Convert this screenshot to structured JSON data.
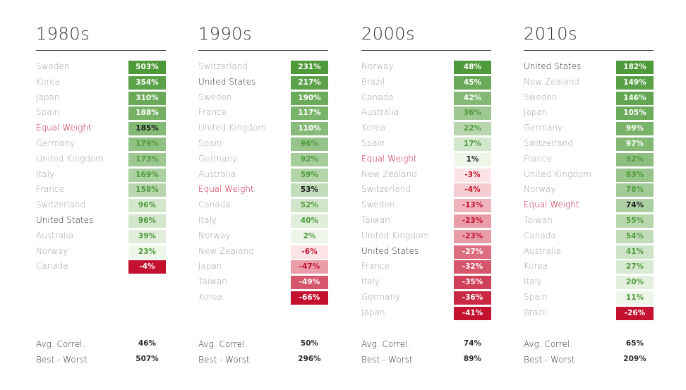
{
  "chart_data": [
    {
      "type": "table",
      "title": "1980s",
      "rows": [
        {
          "country": "Sweden",
          "value": 503,
          "label": "503%"
        },
        {
          "country": "Korea",
          "value": 354,
          "label": "354%"
        },
        {
          "country": "Japan",
          "value": 310,
          "label": "310%"
        },
        {
          "country": "Spain",
          "value": 188,
          "label": "188%"
        },
        {
          "country": "Equal Weight",
          "value": 185,
          "label": "185%"
        },
        {
          "country": "Germany",
          "value": 179,
          "label": "179%"
        },
        {
          "country": "United Kingdom",
          "value": 173,
          "label": "173%"
        },
        {
          "country": "Italy",
          "value": 169,
          "label": "169%"
        },
        {
          "country": "France",
          "value": 158,
          "label": "158%"
        },
        {
          "country": "Switzerland",
          "value": 96,
          "label": "96%"
        },
        {
          "country": "United States",
          "value": 96,
          "label": "96%"
        },
        {
          "country": "Australia",
          "value": 39,
          "label": "39%"
        },
        {
          "country": "Norway",
          "value": 23,
          "label": "23%"
        },
        {
          "country": "Canada",
          "value": -4,
          "label": "-4%"
        }
      ],
      "stats": [
        {
          "label": "Avg. Correl.",
          "value": "46%"
        },
        {
          "label": "Best - Worst",
          "value": "507%"
        }
      ]
    },
    {
      "type": "table",
      "title": "1990s",
      "rows": [
        {
          "country": "Switzerland",
          "value": 231,
          "label": "231%"
        },
        {
          "country": "United States",
          "value": 217,
          "label": "217%"
        },
        {
          "country": "Sweden",
          "value": 190,
          "label": "190%"
        },
        {
          "country": "France",
          "value": 117,
          "label": "117%"
        },
        {
          "country": "United Kingdom",
          "value": 110,
          "label": "110%"
        },
        {
          "country": "Spain",
          "value": 96,
          "label": "96%"
        },
        {
          "country": "Germany",
          "value": 92,
          "label": "92%"
        },
        {
          "country": "Australia",
          "value": 59,
          "label": "59%"
        },
        {
          "country": "Equal Weight",
          "value": 53,
          "label": "53%"
        },
        {
          "country": "Canada",
          "value": 52,
          "label": "52%"
        },
        {
          "country": "Italy",
          "value": 40,
          "label": "40%"
        },
        {
          "country": "Norway",
          "value": 2,
          "label": "2%"
        },
        {
          "country": "New Zealand",
          "value": -6,
          "label": "-6%"
        },
        {
          "country": "Japan",
          "value": -47,
          "label": "-47%"
        },
        {
          "country": "Taiwan",
          "value": -49,
          "label": "-49%"
        },
        {
          "country": "Korea",
          "value": -66,
          "label": "-66%"
        }
      ],
      "stats": [
        {
          "label": "Avg. Correl.",
          "value": "50%"
        },
        {
          "label": "Best - Worst",
          "value": "296%"
        }
      ]
    },
    {
      "type": "table",
      "title": "2000s",
      "rows": [
        {
          "country": "Norway",
          "value": 48,
          "label": "48%"
        },
        {
          "country": "Brazil",
          "value": 45,
          "label": "45%"
        },
        {
          "country": "Canada",
          "value": 42,
          "label": "42%"
        },
        {
          "country": "Australia",
          "value": 36,
          "label": "36%"
        },
        {
          "country": "Korea",
          "value": 22,
          "label": "22%"
        },
        {
          "country": "Spain",
          "value": 17,
          "label": "17%"
        },
        {
          "country": "Equal Weight",
          "value": 1,
          "label": "1%"
        },
        {
          "country": "New Zealand",
          "value": -3,
          "label": "-3%"
        },
        {
          "country": "Switzerland",
          "value": -4,
          "label": "-4%"
        },
        {
          "country": "Sweden",
          "value": -13,
          "label": "-13%"
        },
        {
          "country": "Taiwan",
          "value": -23,
          "label": "-23%"
        },
        {
          "country": "United Kingdom",
          "value": -23,
          "label": "-23%"
        },
        {
          "country": "United States",
          "value": -27,
          "label": "-27%"
        },
        {
          "country": "France",
          "value": -32,
          "label": "-32%"
        },
        {
          "country": "Italy",
          "value": -35,
          "label": "-35%"
        },
        {
          "country": "Germany",
          "value": -36,
          "label": "-36%"
        },
        {
          "country": "Japan",
          "value": -41,
          "label": "-41%"
        }
      ],
      "stats": [
        {
          "label": "Avg. Correl.",
          "value": "74%"
        },
        {
          "label": "Best - Worst",
          "value": "89%"
        }
      ]
    },
    {
      "type": "table",
      "title": "2010s",
      "rows": [
        {
          "country": "United States",
          "value": 182,
          "label": "182%"
        },
        {
          "country": "New Zealand",
          "value": 149,
          "label": "149%"
        },
        {
          "country": "Sweden",
          "value": 146,
          "label": "146%"
        },
        {
          "country": "Japan",
          "value": 105,
          "label": "105%"
        },
        {
          "country": "Germany",
          "value": 99,
          "label": "99%"
        },
        {
          "country": "Switzerland",
          "value": 97,
          "label": "97%"
        },
        {
          "country": "France",
          "value": 92,
          "label": "92%"
        },
        {
          "country": "United Kingdom",
          "value": 83,
          "label": "83%"
        },
        {
          "country": "Norway",
          "value": 78,
          "label": "78%"
        },
        {
          "country": "Equal Weight",
          "value": 74,
          "label": "74%"
        },
        {
          "country": "Taiwan",
          "value": 55,
          "label": "55%"
        },
        {
          "country": "Canada",
          "value": 54,
          "label": "54%"
        },
        {
          "country": "Australia",
          "value": 41,
          "label": "41%"
        },
        {
          "country": "Korea",
          "value": 27,
          "label": "27%"
        },
        {
          "country": "Italy",
          "value": 20,
          "label": "20%"
        },
        {
          "country": "Spain",
          "value": 11,
          "label": "11%"
        },
        {
          "country": "Brazil",
          "value": -26,
          "label": "-26%"
        }
      ],
      "stats": [
        {
          "label": "Avg. Correl.",
          "value": "65%"
        },
        {
          "label": "Best - Worst",
          "value": "209%"
        }
      ]
    }
  ],
  "colors": {
    "positive_strong": "#4e9a3a",
    "positive_weak": "#eef6ea",
    "negative_weak": "#fbe3e6",
    "negative_strong": "#c4112f",
    "equal_weight_text": "#c4112f",
    "united_states_text": "#2b2b2b",
    "country_text": "#a0a0a0"
  }
}
